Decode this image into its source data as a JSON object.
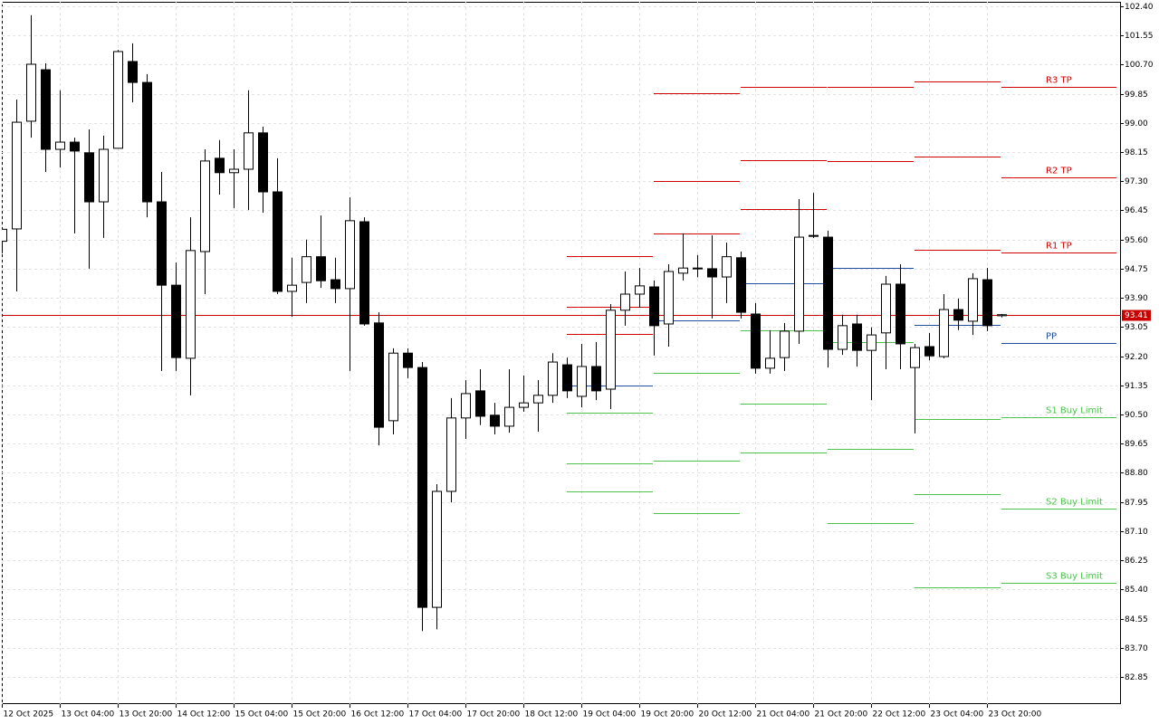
{
  "chart_data": {
    "type": "candlestick",
    "categories": [
      "12 Oct 2025",
      null,
      null,
      null,
      "13 Oct 04:00",
      null,
      null,
      null,
      "13 Oct 20:00",
      null,
      null,
      null,
      "14 Oct 12:00",
      null,
      null,
      null,
      "15 Oct 04:00",
      null,
      null,
      null,
      "15 Oct 20:00",
      null,
      null,
      null,
      "16 Oct 12:00",
      null,
      null,
      null,
      "17 Oct 04:00",
      null,
      null,
      null,
      "17 Oct 20:00",
      null,
      null,
      null,
      "18 Oct 12:00",
      null,
      null,
      null,
      "19 Oct 04:00",
      null,
      null,
      null,
      "19 Oct 20:00",
      null,
      null,
      null,
      "20 Oct 12:00",
      null,
      null,
      null,
      "21 Oct 04:00",
      null,
      null,
      null,
      "21 Oct 20:00",
      null,
      null,
      null,
      "22 Oct 12:00",
      null,
      null,
      null,
      "23 Oct 04:00",
      null,
      null,
      null,
      "23 Oct 20:00",
      null
    ],
    "open": [
      95.55,
      95.91,
      99.05,
      100.55,
      98.23,
      98.44,
      98.13,
      96.7,
      98.26,
      100.79,
      100.18,
      96.7,
      94.27,
      92.14,
      95.25,
      97.97,
      97.55,
      97.65,
      98.71,
      96.99,
      94.09,
      94.35,
      95.1,
      94.43,
      94.17,
      96.12,
      93.17,
      90.32,
      92.29,
      91.87,
      84.88,
      88.26,
      90.4,
      91.19,
      90.48,
      90.16,
      90.71,
      90.84,
      91.06,
      91.95,
      91.03,
      91.9,
      91.24,
      93.54,
      94.01,
      94.22,
      93.14,
      94.62,
      94.77,
      94.75,
      94.51,
      95.07,
      93.43,
      91.85,
      92.16,
      92.93,
      95.72,
      95.67,
      92.4,
      93.14,
      92.37,
      92.88,
      94.3,
      91.87,
      92.48,
      92.19,
      93.56,
      93.22,
      94.43,
      93.38
    ],
    "high": [
      95.9,
      99.68,
      102.14,
      100.74,
      99.95,
      98.57,
      98.81,
      98.63,
      101.13,
      101.32,
      100.42,
      97.57,
      94.93,
      96.25,
      98.23,
      98.5,
      98.23,
      99.95,
      98.89,
      97.97,
      95.07,
      95.6,
      96.3,
      95.07,
      96.83,
      96.25,
      93.48,
      92.43,
      92.43,
      92.03,
      88.47,
      90.98,
      91.5,
      91.82,
      90.84,
      91.82,
      91.64,
      91.5,
      92.29,
      92.16,
      92.56,
      92.61,
      93.72,
      94.67,
      94.77,
      94.41,
      94.88,
      95.78,
      95.15,
      95.72,
      95.51,
      95.25,
      93.75,
      92.96,
      93.17,
      96.78,
      96.96,
      95.86,
      93.41,
      93.41,
      93.04,
      94.54,
      94.88,
      92.56,
      92.88,
      94.01,
      93.88,
      94.62,
      94.77,
      93.43
    ],
    "low": [
      95.2,
      94.09,
      98.57,
      97.57,
      97.7,
      95.78,
      94.75,
      95.65,
      98.26,
      99.6,
      96.25,
      91.77,
      91.77,
      91.06,
      94.01,
      96.91,
      96.52,
      96.46,
      96.38,
      94.01,
      93.35,
      93.75,
      94.19,
      93.75,
      91.77,
      93.09,
      89.6,
      89.92,
      91.56,
      84.19,
      84.24,
      87.94,
      89.79,
      90.19,
      89.92,
      89.97,
      90.58,
      90.0,
      90.84,
      90.98,
      90.71,
      90.92,
      90.66,
      93.09,
      93.62,
      92.22,
      92.48,
      94.41,
      94.5,
      93.3,
      93.75,
      93.3,
      91.69,
      91.69,
      91.77,
      92.56,
      95.65,
      91.87,
      92.24,
      91.9,
      90.92,
      91.82,
      91.82,
      89.95,
      92.08,
      92.14,
      92.96,
      92.82,
      92.93,
      93.33
    ],
    "close": [
      95.9,
      99.02,
      100.71,
      98.23,
      98.44,
      98.18,
      96.7,
      98.23,
      101.08,
      100.18,
      96.7,
      94.27,
      92.16,
      95.28,
      97.89,
      97.55,
      97.65,
      98.71,
      96.99,
      94.09,
      94.27,
      95.1,
      94.4,
      94.17,
      96.15,
      93.14,
      90.13,
      92.29,
      91.87,
      84.88,
      88.26,
      90.4,
      91.11,
      90.45,
      90.16,
      90.71,
      90.84,
      91.06,
      92.03,
      91.19,
      91.9,
      91.19,
      93.54,
      94.01,
      94.25,
      93.09,
      94.67,
      94.77,
      94.75,
      94.51,
      95.1,
      93.48,
      91.85,
      92.14,
      92.93,
      95.67,
      95.7,
      92.4,
      93.09,
      92.37,
      92.82,
      94.3,
      92.56,
      92.45,
      92.21,
      93.56,
      93.25,
      94.46,
      93.09,
      93.41
    ],
    "up_color": "#ffffff",
    "down_color": "#000000",
    "wick_color": "#000000",
    "last_price": 93.41,
    "last_price_color": "#c80000",
    "pivot_levels": [
      {
        "label": "R3 TP",
        "color": "#d00000",
        "values": [
          95.12,
          99.87,
          100.05,
          100.05,
          100.21,
          100.05
        ]
      },
      {
        "label": "R2 TP",
        "color": "#d00000",
        "values": [
          93.64,
          97.31,
          97.91,
          97.89,
          98.02,
          97.41
        ]
      },
      {
        "label": "R1 TP",
        "color": "#d00000",
        "values": [
          92.85,
          95.78,
          96.49,
          null,
          95.3,
          95.22
        ]
      },
      {
        "label": "PP",
        "color": "#1f4e9c",
        "values": [
          91.34,
          93.24,
          94.33,
          94.78,
          93.11,
          92.58
        ]
      },
      {
        "label": "S1 Buy Limit",
        "color": "#4cc24c",
        "values": [
          90.55,
          91.71,
          92.95,
          92.61,
          90.37,
          90.42
        ]
      },
      {
        "label": "S2 Buy Limit",
        "color": "#4cc24c",
        "values": [
          89.08,
          89.15,
          90.82,
          89.5,
          88.18,
          87.76
        ]
      },
      {
        "label": "S3 Buy Limit",
        "color": "#4cc24c",
        "values": [
          88.26,
          87.62,
          89.39,
          87.33,
          85.46,
          85.59
        ]
      }
    ],
    "ylim": [
      82.06,
      102.53
    ],
    "yticks": [
      {
        "value": 102.4,
        "label": "102.40"
      },
      101.55,
      {
        "value": 100.7,
        "label": "100.70"
      },
      99.85,
      {
        "value": 99,
        "label": "99.00"
      },
      98.15,
      {
        "value": 97.3,
        "label": "97.30"
      },
      96.45,
      {
        "value": 95.6,
        "label": "95.60"
      },
      94.75,
      {
        "value": 93.9,
        "label": "93.90"
      },
      93.05,
      {
        "value": 92.2,
        "label": "92.20"
      },
      91.35,
      {
        "value": 90.5,
        "label": "90.50"
      },
      89.65,
      {
        "value": 88.8,
        "label": "88.80"
      },
      87.95,
      {
        "value": 87.1,
        "label": "87.10"
      },
      86.25,
      {
        "value": 85.4,
        "label": "85.40"
      },
      84.55,
      {
        "value": 83.7,
        "label": "83.70"
      },
      82.85
    ],
    "grid": true
  }
}
